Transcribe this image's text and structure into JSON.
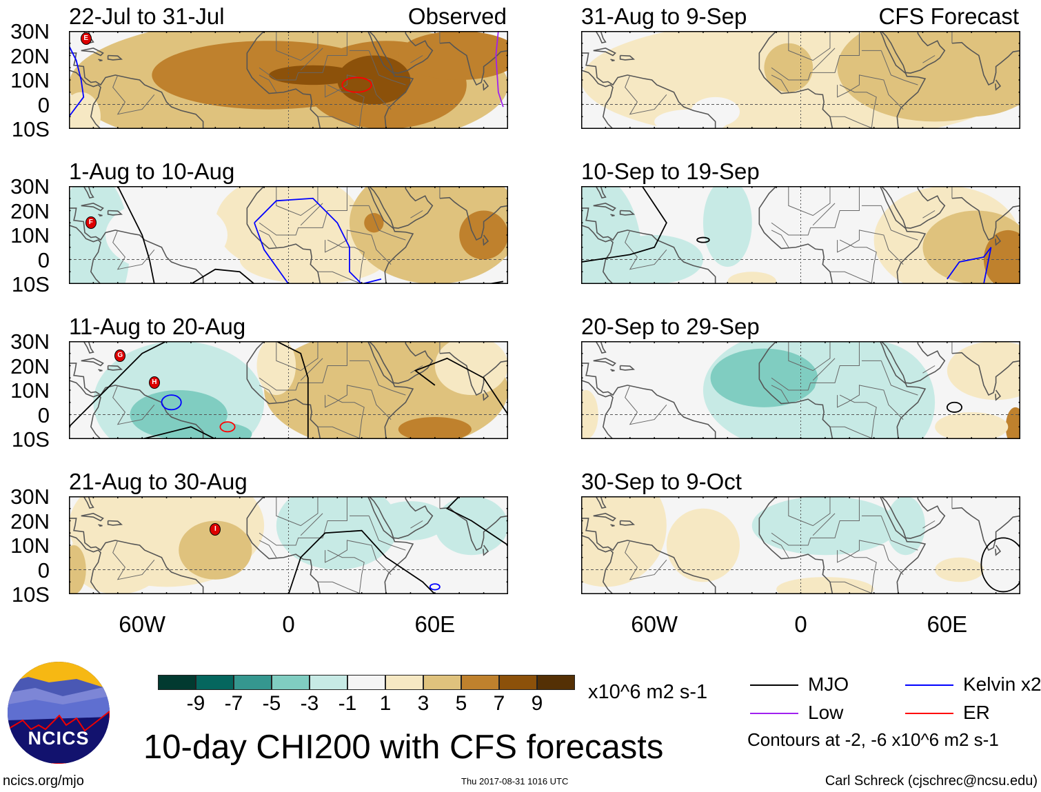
{
  "panels": [
    {
      "title": "22-Jul to 31-Jul",
      "tag": "Observed",
      "storms": [
        "E"
      ]
    },
    {
      "title": "1-Aug to 10-Aug",
      "storms": [
        "F"
      ]
    },
    {
      "title": "11-Aug to 20-Aug",
      "storms": [
        "G",
        "H"
      ]
    },
    {
      "title": "21-Aug to 30-Aug",
      "storms": [
        "I"
      ]
    },
    {
      "title": "31-Aug to 9-Sep",
      "tag": "CFS Forecast",
      "storms": []
    },
    {
      "title": "10-Sep to 19-Sep",
      "storms": []
    },
    {
      "title": "20-Sep to 29-Sep",
      "storms": []
    },
    {
      "title": "30-Sep to 9-Oct",
      "storms": []
    }
  ],
  "lat_labels": [
    "30N",
    "20N",
    "10N",
    "0",
    "10S"
  ],
  "lon_labels": [
    "60W",
    "0",
    "60E"
  ],
  "colorbar": {
    "colors": [
      "#023a30",
      "#05665e",
      "#35978f",
      "#80cdc1",
      "#c7eae5",
      "#f5f5f5",
      "#f6e8c3",
      "#dfc27d",
      "#bf812d",
      "#8c510a",
      "#543005"
    ],
    "labels": [
      "-9",
      "-7",
      "-5",
      "-3",
      "-1",
      "1",
      "3",
      "5",
      "7",
      "9"
    ],
    "units": "x10^6 m2 s-1"
  },
  "title": "10-day CHI200 with CFS forecasts",
  "legend": {
    "items": [
      {
        "label": "MJO",
        "color": "#000000"
      },
      {
        "label": "Kelvin x2",
        "color": "#0000ff"
      },
      {
        "label": "Low",
        "color": "#a020f0"
      },
      {
        "label": "ER",
        "color": "#ff0000"
      }
    ],
    "note": "Contours at -2, -6 x10^6 m2 s-1"
  },
  "footer": {
    "url": "ncics.org/mjo",
    "timestamp": "Thu 2017-08-31 1016 UTC",
    "credit": "Carl Schreck (cjschrec@ncsu.edu)",
    "logo_text": "NCICS"
  }
}
